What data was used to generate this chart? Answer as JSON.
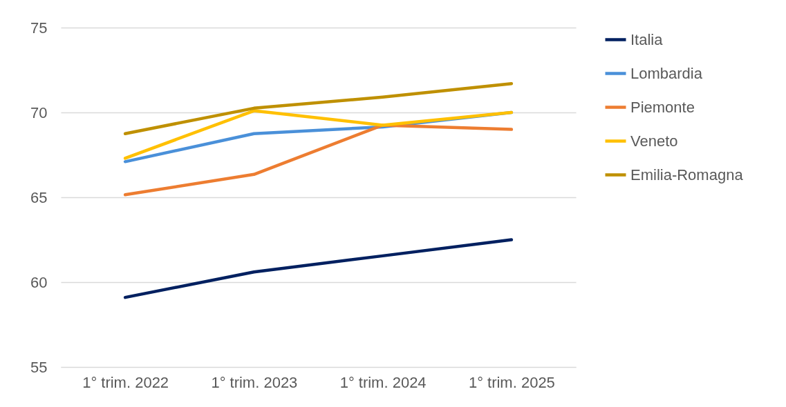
{
  "chart_data": {
    "type": "line",
    "categories": [
      "1° trim. 2022",
      "1° trim. 2023",
      "1° trim. 2024",
      "1° trim. 2025"
    ],
    "series": [
      {
        "name": "Italia",
        "color": "#002060",
        "values": [
          59.1,
          60.6,
          61.55,
          62.5
        ]
      },
      {
        "name": "Lombardia",
        "color": "#4a90d9",
        "values": [
          67.1,
          68.75,
          69.15,
          70.0
        ]
      },
      {
        "name": "Piemonte",
        "color": "#ed7d31",
        "values": [
          65.15,
          66.35,
          69.25,
          69.0
        ]
      },
      {
        "name": "Veneto",
        "color": "#ffc000",
        "values": [
          67.3,
          70.1,
          69.25,
          70.0
        ]
      },
      {
        "name": "Emilia-Romagna",
        "color": "#bf9000",
        "values": [
          68.75,
          70.25,
          70.9,
          71.7
        ]
      }
    ],
    "ylim": [
      55,
      75
    ],
    "yticks": [
      55,
      60,
      65,
      70,
      75
    ],
    "grid": "y",
    "legend": "right",
    "marker": "none",
    "line_style": "solid"
  }
}
